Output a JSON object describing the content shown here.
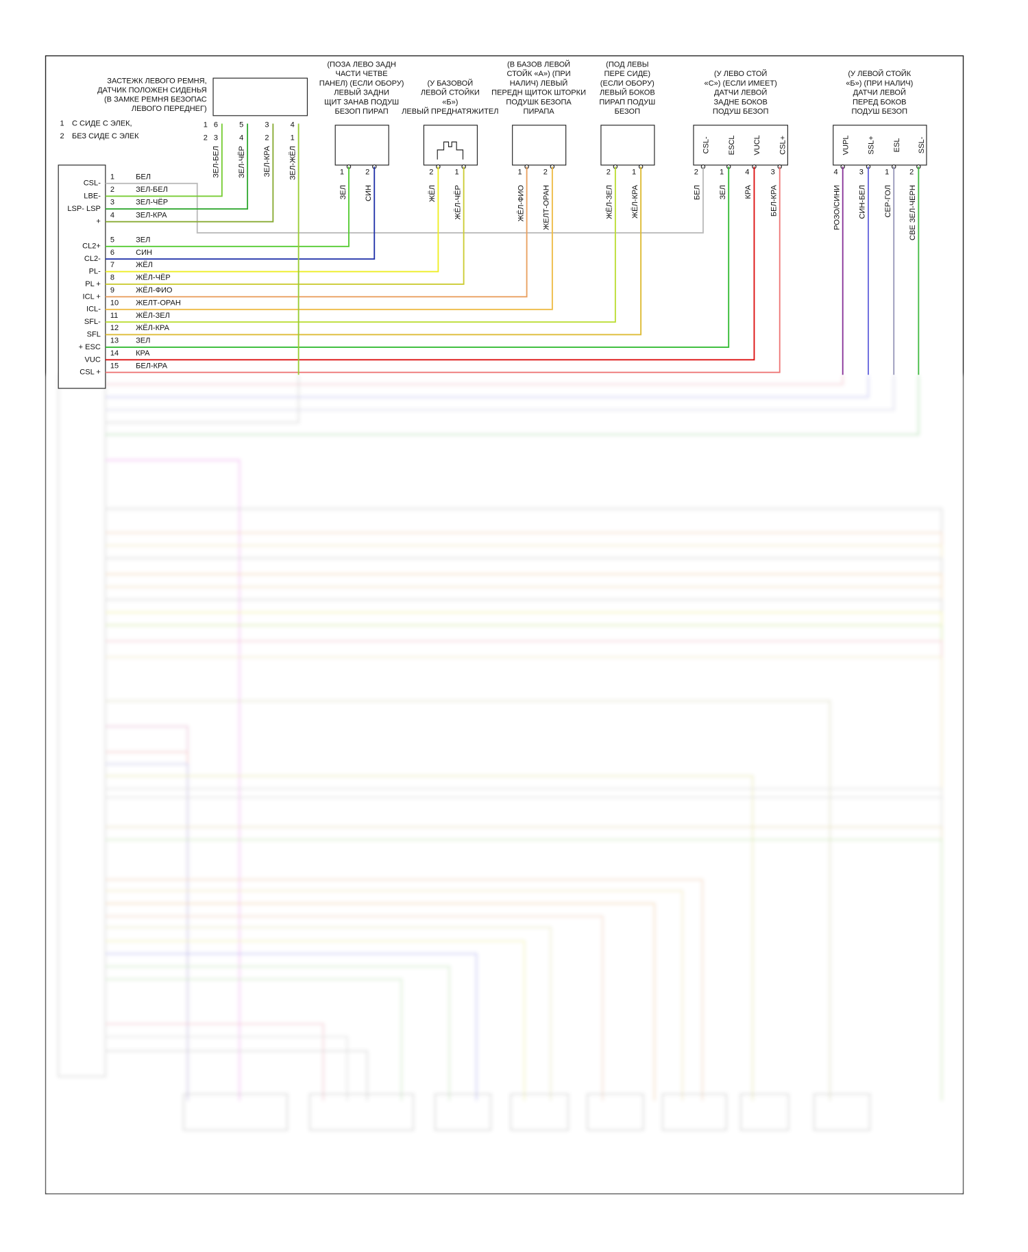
{
  "legend": [
    {
      "num": "1",
      "text": "С СИДЕ С ЭЛЕК,"
    },
    {
      "num": "2",
      "text": "БЕЗ СИДЕ С ЭЛЕК"
    }
  ],
  "buckle": {
    "label": [
      "ЗАСТЕЖК ЛЕВОГО РЕМНЯ,",
      "ДАТЧИК ПОЛОЖЕН СИДЕНЬЯ",
      "(В ЗАМКЕ РЕМНЯ БЕЗОПАС",
      "ЛЕВОГО ПЕРЕДНЕГ)"
    ],
    "row_nums": [
      "1",
      "2"
    ],
    "pins1": [
      "6",
      "5",
      "3",
      "4"
    ],
    "pins2": [
      "3",
      "4",
      "2",
      "1"
    ],
    "wires": [
      "ЗЕЛ-БЕЛ",
      "ЗЕЛ-ЧЁР",
      "ЗЕЛ-КРА",
      "ЗЕЛ-ЖЁЛ"
    ]
  },
  "components": [
    {
      "label": [
        "(ПОЗА ЛЕВО ЗАДН",
        "ЧАСТИ ЧЕТВЕ",
        "ПАНЕЛ) (ЕСЛИ ОБОРУ)",
        "ЛЕВЫЙ ЗАДНИ",
        "ЩИТ ЗАНАВ ПОДУШ",
        "БЕЗОП ПИРАП"
      ],
      "pins": [
        "1",
        "2"
      ],
      "wires": [
        "ЗЕЛ",
        "СИН"
      ]
    },
    {
      "label": [
        "(У БАЗОВОЙ",
        "ЛЕВОЙ СТОЙКИ",
        "«Б»)",
        "ЛЕВЫЙ ПРЕДНАТЯЖИТЕЛ"
      ],
      "pins": [
        "2",
        "1"
      ],
      "wires": [
        "ЖЁЛ",
        "ЖЁЛ-ЧЁР"
      ]
    },
    {
      "label": [
        "(В БАЗОВ ЛЕВОЙ",
        "СТОЙК «А») (ПРИ",
        "НАЛИЧ) ЛЕВЫЙ",
        "ПЕРЕДН ЩИТОК ШТОРКИ",
        "ПОДУШК БЕЗОПА",
        "ПИРАПА"
      ],
      "pins": [
        "1",
        "2"
      ],
      "wires": [
        "ЖЁЛ-ФИО",
        "ЖЕЛТ-ОРАН"
      ]
    },
    {
      "label": [
        "(ПОД ЛЕВЫ",
        "ПЕРЕ СИДЕ)",
        "(ЕСЛИ ОБОРУ)",
        "ЛЕВЫЙ БОКОВ",
        "ПИРАП ПОДУШ",
        "БЕЗОП"
      ],
      "pins": [
        "2",
        "1"
      ],
      "wires": [
        "ЖЁЛ-ЗЕЛ",
        "ЖЁЛ-КРА"
      ]
    },
    {
      "label": [
        "(У ЛЕВО СТОЙ",
        "«С») (ЕСЛИ ИМЕЕТ)",
        "ДАТЧИ ЛЕВОЙ",
        "ЗАДНЕ БОКОВ",
        "ПОДУШ БЕЗОП"
      ],
      "inner": [
        "CSL-",
        "ESCL",
        "VUCL",
        "CSL+"
      ],
      "pins": [
        "2",
        "1",
        "4",
        "3"
      ],
      "wires": [
        "БЕЛ",
        "ЗЕЛ",
        "КРА",
        "БЕЛ-КРА"
      ]
    },
    {
      "label": [
        "(У ЛЕВОЙ СТОЙК",
        "«Б») (ПРИ НАЛИЧ)",
        "ДАТЧИ ЛЕВОЙ",
        "ПЕРЕД БОКОВ",
        "ПОДУШ БЕЗОП"
      ],
      "inner": [
        "VUPL",
        "SSL+",
        "ESL",
        "SSL-"
      ],
      "pins": [
        "4",
        "3",
        "1",
        "2"
      ],
      "wires": [
        "РОЗО/СИНИ",
        "СИН-БЕЛ",
        "СЕР-ГОЛ",
        "СВЕ ЗЕЛ-ЧЕРН"
      ]
    }
  ],
  "main_connector": {
    "pins": [
      {
        "name": "CSL-",
        "num": "1",
        "wire": "БЕЛ"
      },
      {
        "name": "LBE-",
        "num": "2",
        "wire": "ЗЕЛ-БЕЛ"
      },
      {
        "name": "LSP- LSP",
        "num": "3",
        "wire": "ЗЕЛ-ЧЁР"
      },
      {
        "name": "+",
        "num": "4",
        "wire": "ЗЕЛ-КРА"
      },
      {
        "name": "CL2+",
        "num": "5",
        "wire": "ЗЕЛ"
      },
      {
        "name": "CL2-",
        "num": "6",
        "wire": "СИН"
      },
      {
        "name": "PL-",
        "num": "7",
        "wire": "ЖЁЛ"
      },
      {
        "name": "PL +",
        "num": "8",
        "wire": "ЖЁЛ-ЧЁР"
      },
      {
        "name": "ICL +",
        "num": "9",
        "wire": "ЖЁЛ-ФИО"
      },
      {
        "name": "ICL-",
        "num": "10",
        "wire": "ЖЕЛТ-ОРАН"
      },
      {
        "name": "SFL-",
        "num": "11",
        "wire": "ЖЁЛ-ЗЕЛ"
      },
      {
        "name": "SFL",
        "num": "12",
        "wire": "ЖЁЛ-КРА"
      },
      {
        "name": "+ ESC",
        "num": "13",
        "wire": "ЗЕЛ"
      },
      {
        "name": "VUC",
        "num": "14",
        "wire": "КРА"
      },
      {
        "name": "CSL +",
        "num": "15",
        "wire": "БЕЛ-КРА"
      }
    ]
  }
}
